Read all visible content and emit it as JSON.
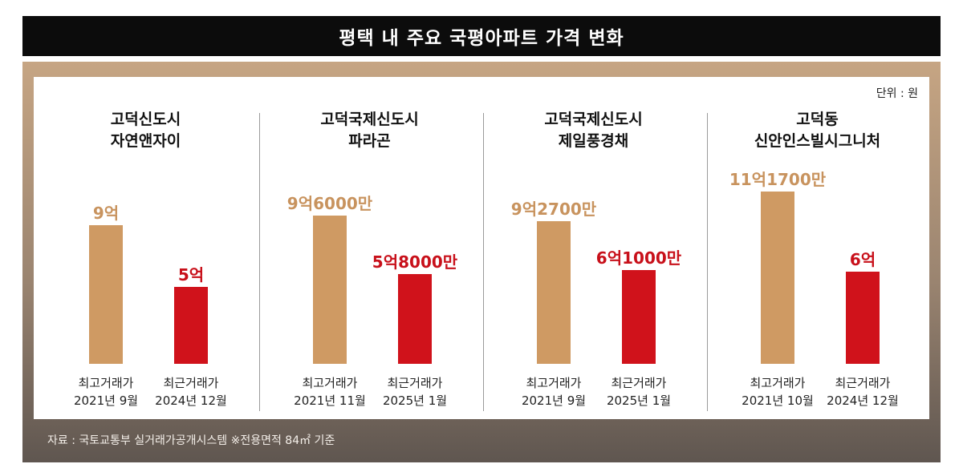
{
  "header": {
    "title": "평택 내 주요 국평아파트 가격 변화"
  },
  "unit_label": "단위 : 원",
  "source_note": "자료 : 국토교통부 실거래가공개시스템 ※전용면적 84㎡ 기준",
  "colors": {
    "max_bar": "#cf9a63",
    "recent_bar": "#d0121b",
    "title_bg": "#0c0c0c"
  },
  "chart_data": {
    "type": "bar",
    "unit": "원",
    "groups": [
      {
        "title_lines": [
          "고덕신도시",
          "자연앤자이"
        ],
        "bars": [
          {
            "type": "max",
            "value": 900000000,
            "label": "9억",
            "caption_line1": "최고거래가",
            "caption_line2": "2021년 9월"
          },
          {
            "type": "recent",
            "value": 500000000,
            "label": "5억",
            "caption_line1": "최근거래가",
            "caption_line2": "2024년 12월"
          }
        ]
      },
      {
        "title_lines": [
          "고덕국제신도시",
          "파라곤"
        ],
        "bars": [
          {
            "type": "max",
            "value": 960000000,
            "label": "9억6000만",
            "caption_line1": "최고거래가",
            "caption_line2": "2021년 11월"
          },
          {
            "type": "recent",
            "value": 580000000,
            "label": "5억8000만",
            "caption_line1": "최근거래가",
            "caption_line2": "2025년 1월"
          }
        ]
      },
      {
        "title_lines": [
          "고덕국제신도시",
          "제일풍경채"
        ],
        "bars": [
          {
            "type": "max",
            "value": 927000000,
            "label": "9억2700만",
            "caption_line1": "최고거래가",
            "caption_line2": "2021년 9월"
          },
          {
            "type": "recent",
            "value": 610000000,
            "label": "6억1000만",
            "caption_line1": "최근거래가",
            "caption_line2": "2025년 1월"
          }
        ]
      },
      {
        "title_lines": [
          "고덕동",
          "신안인스빌시그니처"
        ],
        "bars": [
          {
            "type": "max",
            "value": 1117000000,
            "label": "11억1700만",
            "caption_line1": "최고거래가",
            "caption_line2": "2021년 10월"
          },
          {
            "type": "recent",
            "value": 600000000,
            "label": "6억",
            "caption_line1": "최근거래가",
            "caption_line2": "2024년 12월"
          }
        ]
      }
    ]
  }
}
